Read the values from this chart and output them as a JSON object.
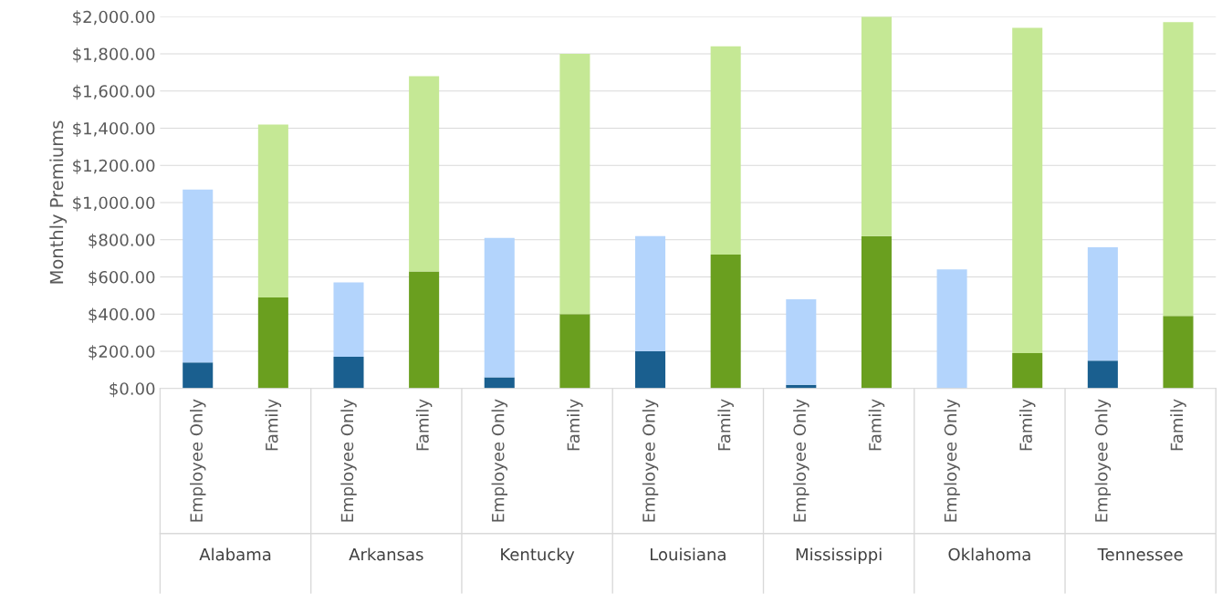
{
  "chart_data": {
    "type": "bar",
    "stacked": true,
    "ylabel": "Monthly Premiums",
    "categories": [
      "Employee Only",
      "Family",
      "Employee Only",
      "Family",
      "Employee Only",
      "Family",
      "Employee Only",
      "Family",
      "Employee Only",
      "Family",
      "Employee Only",
      "Family",
      "Employee Only",
      "Family"
    ],
    "series": [
      {
        "colors": [
          "#1a5f8f",
          "#6a9f1f",
          "#1a5f8f",
          "#6a9f1f",
          "#1a5f8f",
          "#6a9f1f",
          "#1a5f8f",
          "#6a9f1f",
          "#1a5f8f",
          "#6a9f1f",
          "#1a5f8f",
          "#6a9f1f",
          "#1a5f8f",
          "#6a9f1f"
        ],
        "values": [
          140,
          490,
          170,
          630,
          60,
          400,
          200,
          720,
          20,
          820,
          0,
          190,
          150,
          390
        ]
      },
      {
        "colors": [
          "#b3d4fc",
          "#c5e895",
          "#b3d4fc",
          "#c5e895",
          "#b3d4fc",
          "#c5e895",
          "#b3d4fc",
          "#c5e895",
          "#b3d4fc",
          "#c5e895",
          "#b3d4fc",
          "#c5e895",
          "#b3d4fc",
          "#c5e895"
        ],
        "values": [
          930,
          930,
          400,
          1050,
          750,
          1400,
          620,
          1120,
          460,
          1180,
          640,
          1750,
          610,
          1580
        ]
      }
    ],
    "ylim": [
      0,
      2000
    ],
    "yticks": [
      {
        "value": 0,
        "label": "$0.00"
      },
      {
        "value": 200,
        "label": "$200.00"
      },
      {
        "value": 400,
        "label": "$400.00"
      },
      {
        "value": 600,
        "label": "$600.00"
      },
      {
        "value": 800,
        "label": "$800.00"
      },
      {
        "value": 1000,
        "label": "$1,000.00"
      },
      {
        "value": 1200,
        "label": "$1,200.00"
      },
      {
        "value": 1400,
        "label": "$1,400.00"
      },
      {
        "value": 1600,
        "label": "$1,600.00"
      },
      {
        "value": 1800,
        "label": "$1,800.00"
      },
      {
        "value": 2000,
        "label": "$2,000.00"
      }
    ],
    "grid": "y",
    "annotations": [
      "Alabama",
      "Arkansas",
      "Kentucky",
      "Louisiana",
      "Mississippi",
      "Oklahoma",
      "Tennessee"
    ]
  }
}
